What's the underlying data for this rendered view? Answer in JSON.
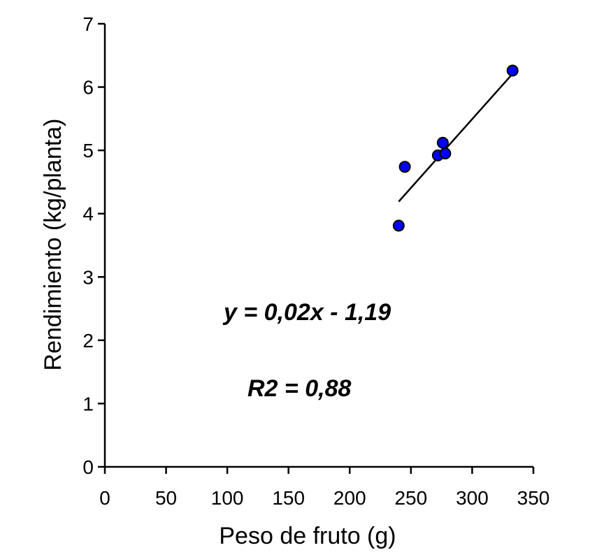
{
  "chart_data": {
    "type": "scatter",
    "title": "",
    "xlabel": "Peso de fruto (g)",
    "ylabel": "Rendimiento (kg/planta)",
    "xlim": [
      0,
      350
    ],
    "ylim": [
      0,
      7
    ],
    "xticks": [
      0,
      50,
      100,
      150,
      200,
      250,
      300,
      350
    ],
    "yticks": [
      0,
      1,
      2,
      3,
      4,
      5,
      6,
      7
    ],
    "grid": false,
    "legend": "none",
    "points": [
      {
        "x": 240,
        "y": 3.81
      },
      {
        "x": 245,
        "y": 4.74
      },
      {
        "x": 272,
        "y": 4.92
      },
      {
        "x": 276,
        "y": 5.12
      },
      {
        "x": 278,
        "y": 4.95
      },
      {
        "x": 333,
        "y": 6.26
      }
    ],
    "trendline": {
      "x": [
        240,
        333
      ],
      "y": [
        4.19,
        6.21
      ]
    },
    "annotations": {
      "equation": "y = 0,02x - 1,19",
      "r2": "R2 = 0,88"
    },
    "colors": {
      "marker_fill": "#0000ff",
      "marker_stroke": "#000000",
      "line": "#000000"
    }
  }
}
